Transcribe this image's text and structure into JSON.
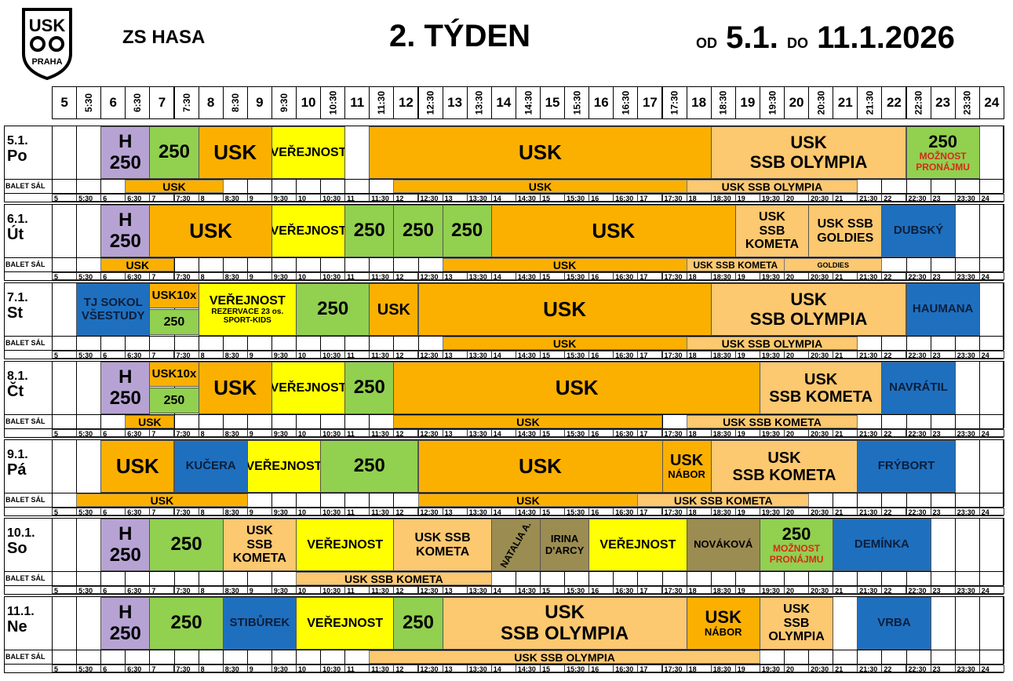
{
  "header": {
    "school": "ZS HASA",
    "week": "2. TÝDEN",
    "od": "OD",
    "from": "5.1.",
    "do": "DO",
    "to": "11.1.2026"
  },
  "logo": {
    "top": "USK",
    "bottom": "PRAHA"
  },
  "time_slots": [
    "5",
    "5:30",
    "6",
    "6:30",
    "7",
    "7:30",
    "8",
    "8:30",
    "9",
    "9:30",
    "10",
    "10:30",
    "11",
    "11:30",
    "12",
    "12:30",
    "13",
    "13:30",
    "14",
    "14:30",
    "15",
    "15:30",
    "16",
    "16:30",
    "17",
    "17:30",
    "18",
    "18:30",
    "19",
    "19:30",
    "20",
    "20:30",
    "21",
    "21:30",
    "22",
    "22:30",
    "23",
    "23:30",
    "24"
  ],
  "balet_label": "BALET SÁL",
  "days": [
    {
      "date": "5.1.",
      "name": "Po",
      "blocks": [
        {
          "s": 2,
          "e": 4,
          "lines": [
            "H",
            "250"
          ],
          "c": "#b7a3d3",
          "fs": 24
        },
        {
          "s": 4,
          "e": 6,
          "lines": [
            "250"
          ],
          "c": "#92d050",
          "fs": 24
        },
        {
          "s": 6,
          "e": 9,
          "lines": [
            "USK"
          ],
          "c": "#fbb000",
          "fs": 26
        },
        {
          "s": 9,
          "e": 12,
          "lines": [
            "VEŘEJNOST"
          ],
          "c": "#ffff00",
          "fs": 16
        },
        {
          "s": 13,
          "e": 27,
          "lines": [
            "USK"
          ],
          "c": "#fbb000",
          "fs": 26
        },
        {
          "s": 27,
          "e": 35,
          "lines": [
            "USK",
            "SSB OLYMPIA"
          ],
          "c": "#fcc870",
          "fs": 22
        },
        {
          "s": 35,
          "e": 38,
          "lines": [
            "250",
            "MOŽNOST PRONÁJMU"
          ],
          "c": "#92d050",
          "fs": 22,
          "sub_red": true
        }
      ],
      "balet": [
        {
          "s": 3,
          "e": 7,
          "t": "USK",
          "c": "#fbb000"
        },
        {
          "s": 14,
          "e": 26,
          "t": "USK",
          "c": "#fbb000"
        },
        {
          "s": 26,
          "e": 33,
          "t": "USK SSB OLYMPIA",
          "c": "#fcc870"
        }
      ]
    },
    {
      "date": "6.1.",
      "name": "Út",
      "blocks": [
        {
          "s": 2,
          "e": 4,
          "lines": [
            "H",
            "250"
          ],
          "c": "#b7a3d3",
          "fs": 24
        },
        {
          "s": 4,
          "e": 9,
          "lines": [
            "USK"
          ],
          "c": "#fbb000",
          "fs": 26
        },
        {
          "s": 9,
          "e": 12,
          "lines": [
            "VEŘEJNOST"
          ],
          "c": "#ffff00",
          "fs": 16
        },
        {
          "s": 12,
          "e": 14,
          "lines": [
            "250"
          ],
          "c": "#92d050",
          "fs": 24
        },
        {
          "s": 14,
          "e": 16,
          "lines": [
            "250"
          ],
          "c": "#92d050",
          "fs": 24
        },
        {
          "s": 16,
          "e": 18,
          "lines": [
            "250"
          ],
          "c": "#92d050",
          "fs": 24
        },
        {
          "s": 18,
          "e": 28,
          "lines": [
            "USK"
          ],
          "c": "#fbb000",
          "fs": 26
        },
        {
          "s": 28,
          "e": 31,
          "lines": [
            "USK",
            "SSB",
            "KOMETA"
          ],
          "c": "#fcc870",
          "fs": 16
        },
        {
          "s": 31,
          "e": 34,
          "lines": [
            "USK SSB",
            "GOLDIES"
          ],
          "c": "#fcc870",
          "fs": 16
        },
        {
          "s": 34,
          "e": 37,
          "lines": [
            "DUBSKÝ"
          ],
          "c": "#1f6fbf",
          "fs": 15
        }
      ],
      "balet": [
        {
          "s": 2,
          "e": 5,
          "t": "USK",
          "c": "#fbb000"
        },
        {
          "s": 16,
          "e": 26,
          "t": "USK",
          "c": "#fbb000"
        },
        {
          "s": 26,
          "e": 30,
          "t": "USK SSB KOMETA",
          "c": "#fcc870",
          "fs": 12
        },
        {
          "s": 30,
          "e": 34,
          "t": "GOLDIES",
          "c": "#fcc870",
          "fs": 9
        }
      ]
    },
    {
      "date": "7.1.",
      "name": "St",
      "blocks": [
        {
          "s": 1,
          "e": 4,
          "lines": [
            "TJ SOKOL",
            "VŠESTUDY"
          ],
          "c": "#1f6fbf",
          "fs": 15
        },
        {
          "s": 4,
          "e": 6,
          "h": "top",
          "lines": [
            "USK10x"
          ],
          "c": "#fbb000",
          "fs": 15
        },
        {
          "s": 4,
          "e": 6,
          "h": "bot",
          "lines": [
            "250"
          ],
          "c": "#92d050",
          "fs": 16
        },
        {
          "s": 6,
          "e": 10,
          "lines": [
            "VEŘEJNOST",
            "REZERVACE 23 os.",
            "SPORT-KIDS"
          ],
          "c": "#ffff00",
          "fs": 16,
          "sub_small": true
        },
        {
          "s": 10,
          "e": 13,
          "lines": [
            "250"
          ],
          "c": "#92d050",
          "fs": 24
        },
        {
          "s": 13,
          "e": 15,
          "lines": [
            "USK"
          ],
          "c": "#fbb000",
          "fs": 20
        },
        {
          "s": 15,
          "e": 27,
          "lines": [
            "USK"
          ],
          "c": "#fbb000",
          "fs": 26
        },
        {
          "s": 27,
          "e": 35,
          "lines": [
            "USK",
            "SSB OLYMPIA"
          ],
          "c": "#fcc870",
          "fs": 22
        },
        {
          "s": 35,
          "e": 38,
          "lines": [
            "HAUMANA"
          ],
          "c": "#1f6fbf",
          "fs": 15
        }
      ],
      "balet": [
        {
          "s": 16,
          "e": 26,
          "t": "USK",
          "c": "#fbb000"
        },
        {
          "s": 26,
          "e": 33,
          "t": "USK SSB OLYMPIA",
          "c": "#fcc870"
        }
      ]
    },
    {
      "date": "8.1.",
      "name": "Čt",
      "blocks": [
        {
          "s": 2,
          "e": 4,
          "lines": [
            "H",
            "250"
          ],
          "c": "#b7a3d3",
          "fs": 24
        },
        {
          "s": 4,
          "e": 6,
          "h": "top",
          "lines": [
            "USK10x"
          ],
          "c": "#fbb000",
          "fs": 15
        },
        {
          "s": 4,
          "e": 6,
          "h": "bot",
          "lines": [
            "250"
          ],
          "c": "#92d050",
          "fs": 16
        },
        {
          "s": 6,
          "e": 9,
          "lines": [
            "USK"
          ],
          "c": "#fbb000",
          "fs": 26
        },
        {
          "s": 9,
          "e": 12,
          "lines": [
            "VEŘEJNOST"
          ],
          "c": "#ffff00",
          "fs": 16
        },
        {
          "s": 12,
          "e": 14,
          "lines": [
            "250"
          ],
          "c": "#92d050",
          "fs": 24
        },
        {
          "s": 14,
          "e": 29,
          "lines": [
            "USK"
          ],
          "c": "#fbb000",
          "fs": 26
        },
        {
          "s": 29,
          "e": 34,
          "lines": [
            "USK",
            "SSB KOMETA"
          ],
          "c": "#fcc870",
          "fs": 20
        },
        {
          "s": 34,
          "e": 37,
          "lines": [
            "NAVRÁTIL"
          ],
          "c": "#1f6fbf",
          "fs": 15
        }
      ],
      "balet": [
        {
          "s": 3,
          "e": 5,
          "t": "USK",
          "c": "#fbb000"
        },
        {
          "s": 14,
          "e": 25,
          "t": "USK",
          "c": "#fbb000"
        },
        {
          "s": 26,
          "e": 33,
          "t": "USK SSB KOMETA",
          "c": "#fcc870"
        }
      ]
    },
    {
      "date": "9.1.",
      "name": "Pá",
      "blocks": [
        {
          "s": 2,
          "e": 5,
          "lines": [
            "USK"
          ],
          "c": "#fbb000",
          "fs": 26
        },
        {
          "s": 5,
          "e": 8,
          "lines": [
            "KUČERA"
          ],
          "c": "#1f6fbf",
          "fs": 15
        },
        {
          "s": 8,
          "e": 11,
          "lines": [
            "VEŘEJNOST"
          ],
          "c": "#ffff00",
          "fs": 16
        },
        {
          "s": 11,
          "e": 15,
          "lines": [
            "250"
          ],
          "c": "#92d050",
          "fs": 24
        },
        {
          "s": 15,
          "e": 25,
          "lines": [
            "USK"
          ],
          "c": "#fbb000",
          "fs": 26
        },
        {
          "s": 25,
          "e": 27,
          "lines": [
            "USK",
            "NÁBOR"
          ],
          "c": "#fbb000",
          "fs": 20,
          "sub_small": true
        },
        {
          "s": 27,
          "e": 33,
          "lines": [
            "USK",
            "SSB KOMETA"
          ],
          "c": "#fcc870",
          "fs": 20
        },
        {
          "s": 33,
          "e": 37,
          "lines": [
            "FRÝBORT"
          ],
          "c": "#1f6fbf",
          "fs": 15
        }
      ],
      "balet": [
        {
          "s": 1,
          "e": 8,
          "t": "USK",
          "c": "#fbb000"
        },
        {
          "s": 15,
          "e": 24,
          "t": "USK",
          "c": "#fbb000"
        },
        {
          "s": 24,
          "e": 31,
          "t": "USK SSB KOMETA",
          "c": "#fcc870"
        }
      ]
    },
    {
      "date": "10.1.",
      "name": "So",
      "blocks": [
        {
          "s": 2,
          "e": 4,
          "lines": [
            "H",
            "250"
          ],
          "c": "#b7a3d3",
          "fs": 24
        },
        {
          "s": 4,
          "e": 7,
          "lines": [
            "250"
          ],
          "c": "#92d050",
          "fs": 24
        },
        {
          "s": 7,
          "e": 10,
          "lines": [
            "USK",
            "SSB",
            "KOMETA"
          ],
          "c": "#fcc870",
          "fs": 16
        },
        {
          "s": 10,
          "e": 14,
          "lines": [
            "VEŘEJNOST"
          ],
          "c": "#ffff00",
          "fs": 16
        },
        {
          "s": 14,
          "e": 18,
          "lines": [
            "USK SSB",
            "KOMETA"
          ],
          "c": "#fcc870",
          "fs": 16
        },
        {
          "s": 18,
          "e": 20,
          "lines": [
            "NATALIA A."
          ],
          "c": "#9b8c52",
          "fs": 12,
          "rot": true
        },
        {
          "s": 20,
          "e": 22,
          "lines": [
            "IRINA",
            "D'ARCY"
          ],
          "c": "#9b8c52",
          "fs": 13
        },
        {
          "s": 22,
          "e": 26,
          "lines": [
            "VEŘEJNOST"
          ],
          "c": "#ffff00",
          "fs": 16
        },
        {
          "s": 26,
          "e": 29,
          "lines": [
            "NOVÁKOVÁ"
          ],
          "c": "#9b8c52",
          "fs": 13
        },
        {
          "s": 29,
          "e": 32,
          "lines": [
            "250",
            "MOŽNOST PRONÁJMU"
          ],
          "c": "#92d050",
          "fs": 22,
          "sub_red": true
        },
        {
          "s": 32,
          "e": 36,
          "lines": [
            "DEMÍNKA"
          ],
          "c": "#1f6fbf",
          "fs": 15
        }
      ],
      "balet": [
        {
          "s": 10,
          "e": 18,
          "t": "USK SSB KOMETA",
          "c": "#fcc870"
        }
      ]
    },
    {
      "date": "11.1.",
      "name": "Ne",
      "blocks": [
        {
          "s": 2,
          "e": 4,
          "lines": [
            "H",
            "250"
          ],
          "c": "#b7a3d3",
          "fs": 24
        },
        {
          "s": 4,
          "e": 7,
          "lines": [
            "250"
          ],
          "c": "#92d050",
          "fs": 24
        },
        {
          "s": 7,
          "e": 10,
          "lines": [
            "STIBŮREK"
          ],
          "c": "#1f6fbf",
          "fs": 15
        },
        {
          "s": 10,
          "e": 14,
          "lines": [
            "VEŘEJNOST"
          ],
          "c": "#ffff00",
          "fs": 16
        },
        {
          "s": 14,
          "e": 16,
          "lines": [
            "250"
          ],
          "c": "#92d050",
          "fs": 24
        },
        {
          "s": 16,
          "e": 26,
          "lines": [
            "USK",
            "SSB OLYMPIA"
          ],
          "c": "#fcc870",
          "fs": 24
        },
        {
          "s": 26,
          "e": 29,
          "lines": [
            "USK",
            "NÁBOR"
          ],
          "c": "#fbb000",
          "fs": 22,
          "sub_small": true
        },
        {
          "s": 29,
          "e": 32,
          "lines": [
            "USK",
            "SSB",
            "OLYMPIA"
          ],
          "c": "#fcc870",
          "fs": 16
        },
        {
          "s": 33,
          "e": 36,
          "lines": [
            "VRBA"
          ],
          "c": "#1f6fbf",
          "fs": 15
        }
      ],
      "balet": [
        {
          "s": 13,
          "e": 29,
          "t": "USK SSB OLYMPIA",
          "c": "#fcc870"
        }
      ]
    }
  ]
}
